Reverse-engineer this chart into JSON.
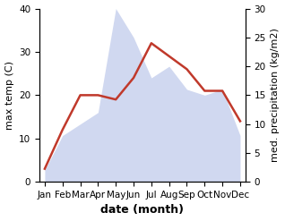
{
  "months": [
    "Jan",
    "Feb",
    "Mar",
    "Apr",
    "May",
    "Jun",
    "Jul",
    "Aug",
    "Sep",
    "Oct",
    "Nov",
    "Dec"
  ],
  "temperature": [
    3,
    12,
    20,
    20,
    19,
    24,
    32,
    29,
    26,
    21,
    21,
    14
  ],
  "precipitation": [
    2,
    8,
    10,
    12,
    30,
    25,
    18,
    20,
    16,
    15,
    16,
    8
  ],
  "temp_color": "#c0392b",
  "precip_color": "#b8c4e8",
  "left_ylim": [
    0,
    40
  ],
  "right_ylim": [
    0,
    30
  ],
  "left_ylabel": "max temp (C)",
  "right_ylabel": "med. precipitation (kg/m2)",
  "xlabel": "date (month)",
  "xlabel_fontsize": 9,
  "ylabel_fontsize": 8,
  "tick_fontsize": 7.5,
  "line_width": 1.8,
  "background_color": "#ffffff"
}
